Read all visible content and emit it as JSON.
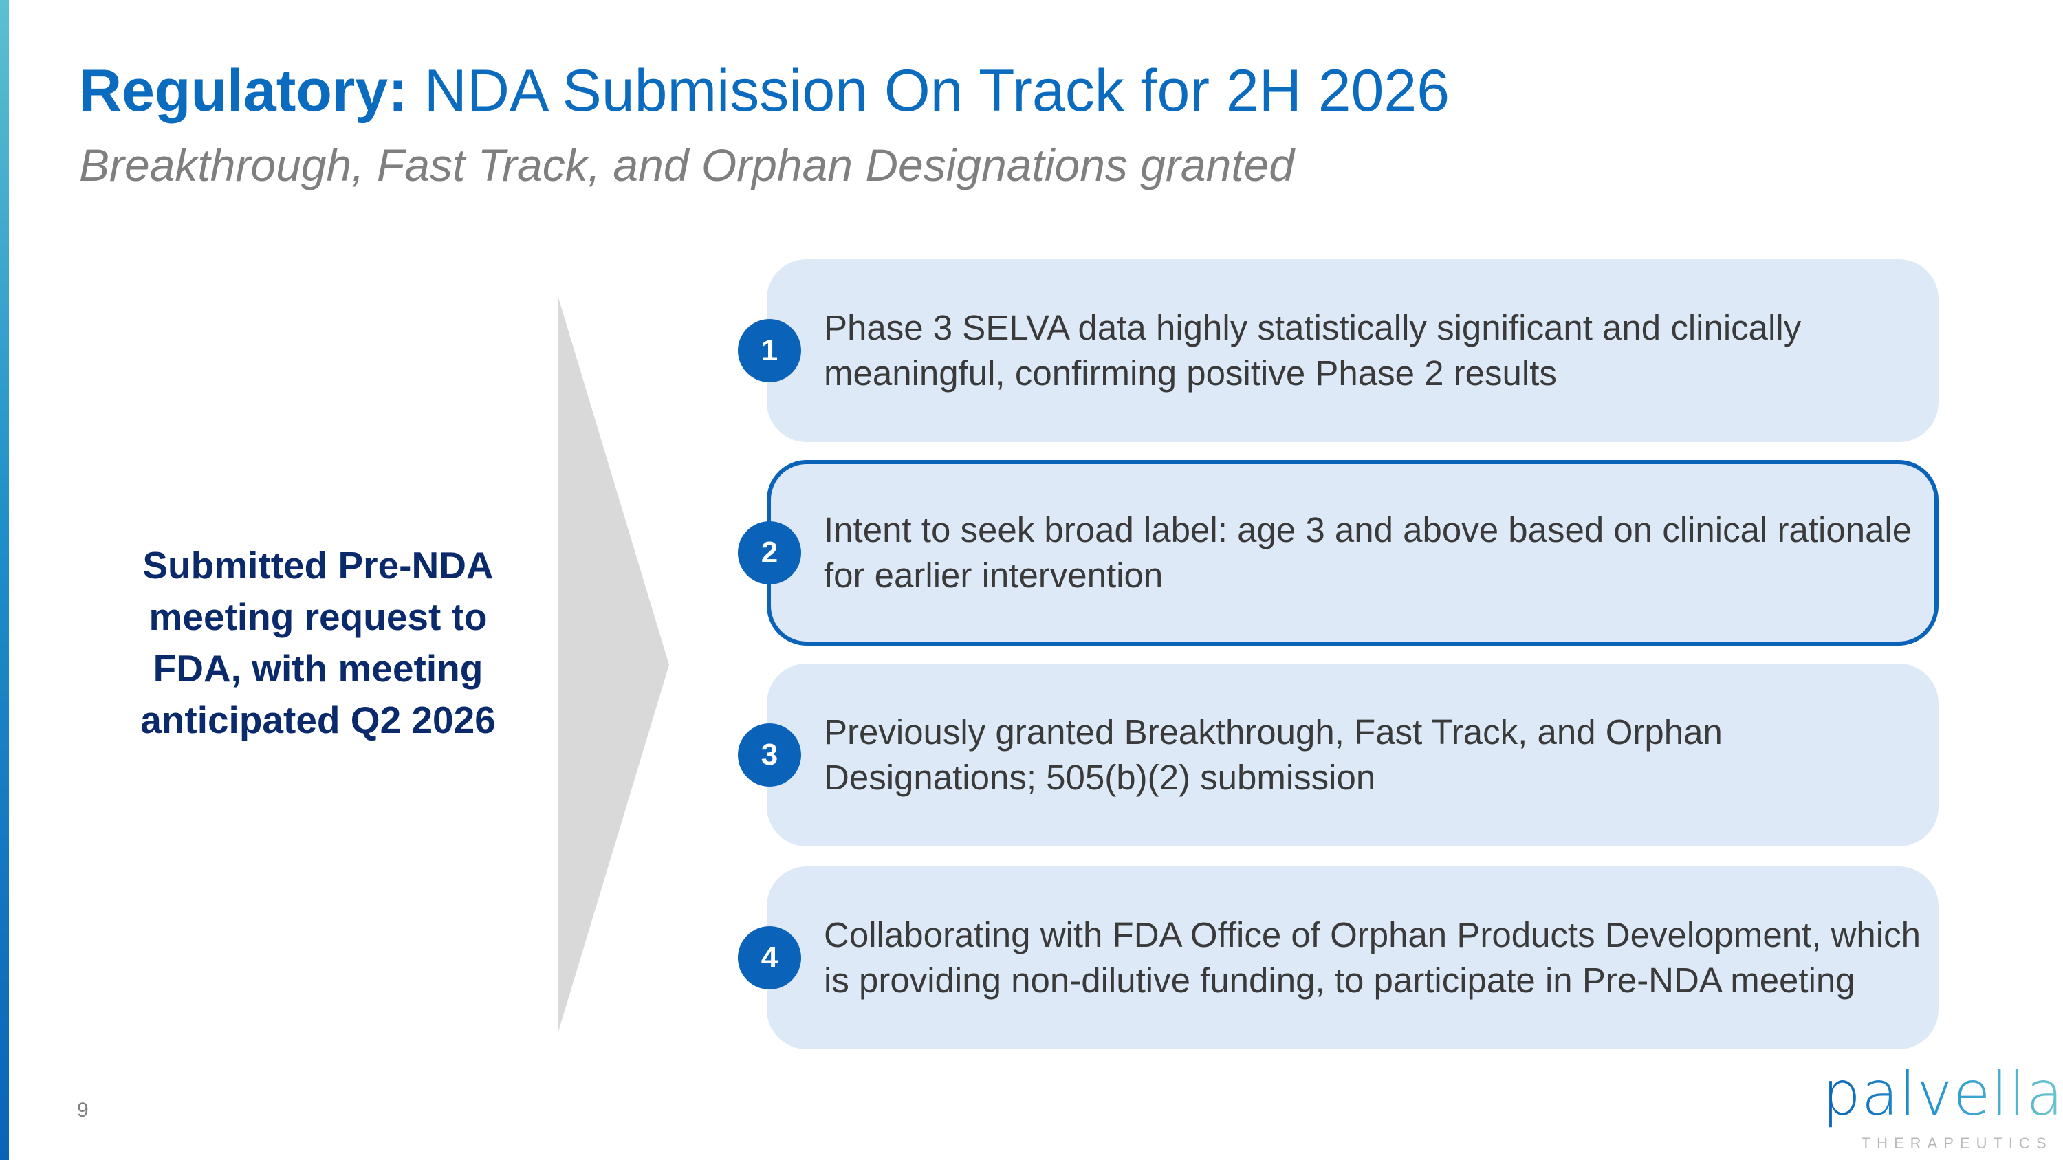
{
  "header": {
    "title_bold": "Regulatory:",
    "title_rest": " NDA Submission On Track for 2H 2026",
    "subtitle": "Breakthrough, Fast Track, and Orphan Designations granted"
  },
  "left_panel": {
    "lines": [
      "Submitted Pre-NDA",
      "meeting request to",
      "FDA, with meeting",
      "anticipated Q2 2026"
    ]
  },
  "items": [
    {
      "number": "1",
      "text": "Phase 3 SELVA data highly statistically significant and clinically meaningful, confirming positive Phase 2 results",
      "highlighted": false
    },
    {
      "number": "2",
      "text": "Intent to seek broad label: age 3 and above based on clinical rationale for earlier intervention",
      "highlighted": true
    },
    {
      "number": "3",
      "text": "Previously granted Breakthrough, Fast Track, and Orphan Designations; 505(b)(2) submission",
      "highlighted": false
    },
    {
      "number": "4",
      "text": "Collaborating with FDA Office of Orphan Products Development, which is providing non-dilutive funding, to participate in Pre-NDA meeting",
      "highlighted": false
    }
  ],
  "footer": {
    "page_number": "9",
    "logo_word": "palvella",
    "logo_sub": "THERAPEUTICS"
  },
  "colors": {
    "brand_blue": "#0a63b8",
    "title_blue": "#0a6bbf",
    "navy": "#0b2a6b",
    "box_fill": "#dde9f6",
    "arrow_gray": "#d9d9d9"
  }
}
